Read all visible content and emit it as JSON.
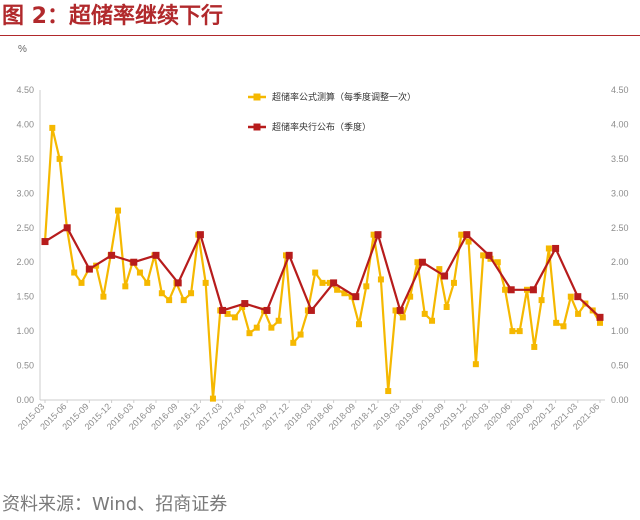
{
  "header": {
    "title": "图 2：超储率继续下行"
  },
  "footer": {
    "source": "资料来源：Wind、招商证券"
  },
  "chart_data": {
    "type": "line",
    "unit": "%",
    "ylim": [
      0,
      4.5
    ],
    "yticks": [
      "0.00",
      "0.50",
      "1.00",
      "1.50",
      "2.00",
      "2.50",
      "3.00",
      "3.50",
      "4.00",
      "4.50"
    ],
    "x_labels": [
      "2015-03",
      "2015-06",
      "2015-09",
      "2015-12",
      "2016-03",
      "2016-06",
      "2016-09",
      "2016-12",
      "2017-03",
      "2017-06",
      "2017-09",
      "2017-12",
      "2018-03",
      "2018-06",
      "2018-09",
      "2018-12",
      "2019-03",
      "2019-06",
      "2019-09",
      "2019-12",
      "2020-03",
      "2020-06",
      "2020-09",
      "2020-12",
      "2021-03",
      "2021-06"
    ],
    "grid": false,
    "legend_position": "top-center",
    "series": [
      {
        "name": "超储率公式测算（每季度调整一次）",
        "color": "#f5b800",
        "marker": "square",
        "values": [
          2.3,
          3.95,
          3.5,
          2.5,
          1.85,
          1.7,
          1.9,
          1.95,
          1.5,
          2.1,
          2.75,
          1.65,
          2.0,
          1.85,
          1.7,
          2.1,
          1.55,
          1.45,
          1.7,
          1.45,
          1.55,
          2.4,
          1.7,
          0.02,
          1.3,
          1.25,
          1.2,
          1.35,
          0.97,
          1.05,
          1.3,
          1.05,
          1.15,
          2.1,
          0.83,
          0.95,
          1.3,
          1.85,
          1.7,
          1.7,
          1.6,
          1.55,
          1.5,
          1.1,
          1.65,
          2.4,
          1.75,
          0.13,
          1.3,
          1.2,
          1.5,
          2.0,
          1.25,
          1.15,
          1.9,
          1.35,
          1.7,
          2.4,
          2.3,
          0.52,
          2.1,
          2.05,
          2.0,
          1.6,
          1.0,
          1.0,
          1.6,
          0.77,
          1.45,
          2.2,
          1.12,
          1.07,
          1.5,
          1.25,
          1.4,
          1.3,
          1.12
        ]
      },
      {
        "name": "超储率央行公布（季度）",
        "color": "#b71c1c",
        "marker": "square",
        "values": [
          2.3,
          2.5,
          1.9,
          2.1,
          2.0,
          2.1,
          1.7,
          2.4,
          1.3,
          1.4,
          1.3,
          2.1,
          1.3,
          1.7,
          1.5,
          2.4,
          1.3,
          2.0,
          1.8,
          2.4,
          2.1,
          1.6,
          1.6,
          2.2,
          1.5,
          1.2
        ]
      }
    ]
  }
}
